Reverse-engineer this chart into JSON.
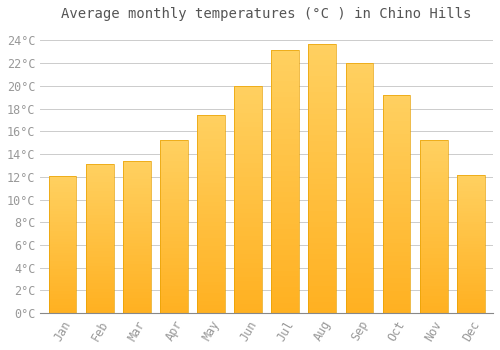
{
  "title": "Average monthly temperatures (°C ) in Chino Hills",
  "months": [
    "Jan",
    "Feb",
    "Mar",
    "Apr",
    "May",
    "Jun",
    "Jul",
    "Aug",
    "Sep",
    "Oct",
    "Nov",
    "Dec"
  ],
  "values": [
    12.1,
    13.1,
    13.4,
    15.2,
    17.4,
    20.0,
    23.2,
    23.7,
    22.0,
    19.2,
    15.2,
    12.2
  ],
  "bar_color_top": "#FFC125",
  "bar_color_bottom": "#FFA500",
  "bar_edge_color": "#E8A000",
  "background_color": "#FFFFFF",
  "plot_bg_color": "#FFFFFF",
  "grid_color": "#CCCCCC",
  "text_color": "#999999",
  "title_color": "#555555",
  "ylim": [
    0,
    25
  ],
  "yticks": [
    0,
    2,
    4,
    6,
    8,
    10,
    12,
    14,
    16,
    18,
    20,
    22,
    24
  ],
  "title_fontsize": 10,
  "tick_fontsize": 8.5
}
